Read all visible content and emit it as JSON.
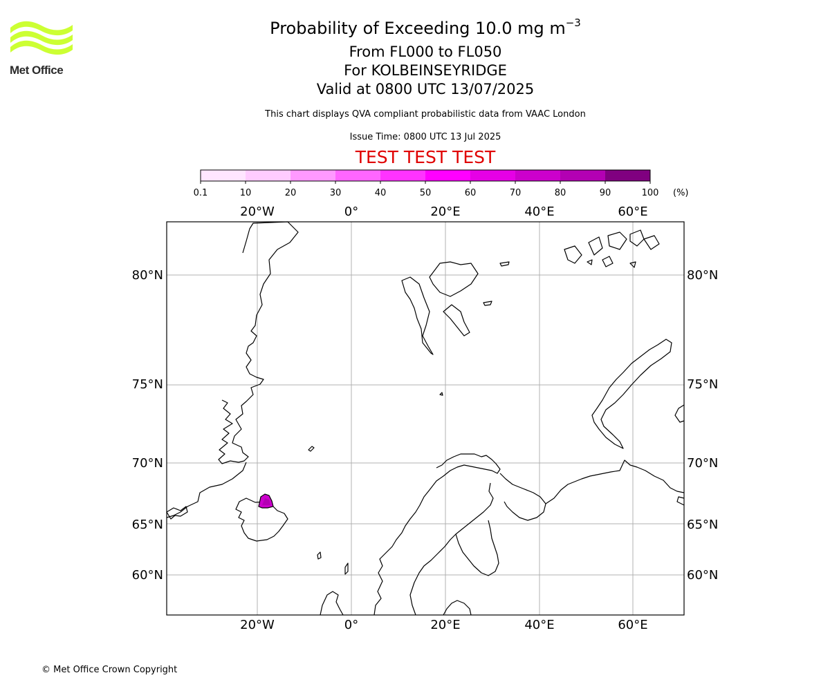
{
  "header": {
    "title": "Probability of Exceeding 10.0 mg m",
    "title_superscript": "−3",
    "level_range": "From FL000 to FL050",
    "location": "For KOLBEINSEYRIDGE",
    "valid_time": "Valid at 0800 UTC 13/07/2025",
    "disclaimer": "This chart displays QVA compliant probabilistic data from VAAC London",
    "issue_time": "Issue Time: 0800 UTC 13 Jul 2025",
    "test_banner": "TEST TEST TEST"
  },
  "logo": {
    "text": "Met Office",
    "color": "#ccff33"
  },
  "colorbar": {
    "labels": [
      "0.1",
      "10",
      "20",
      "30",
      "40",
      "50",
      "60",
      "70",
      "80",
      "90",
      "100"
    ],
    "unit": "(%)",
    "colors": [
      "#ffe6ff",
      "#ffccff",
      "#ff99ff",
      "#ff66ff",
      "#ff33ff",
      "#ff00ff",
      "#e600e6",
      "#cc00cc",
      "#b300b3",
      "#800080",
      "#660066"
    ]
  },
  "map": {
    "lon_labels": [
      "20°W",
      "0°",
      "20°E",
      "40°E",
      "60°E"
    ],
    "lat_labels": [
      "80°N",
      "75°N",
      "70°N",
      "65°N",
      "60°N"
    ],
    "plume_color": "#cc00cc"
  },
  "footer": {
    "copyright": "© Met Office Crown Copyright"
  }
}
